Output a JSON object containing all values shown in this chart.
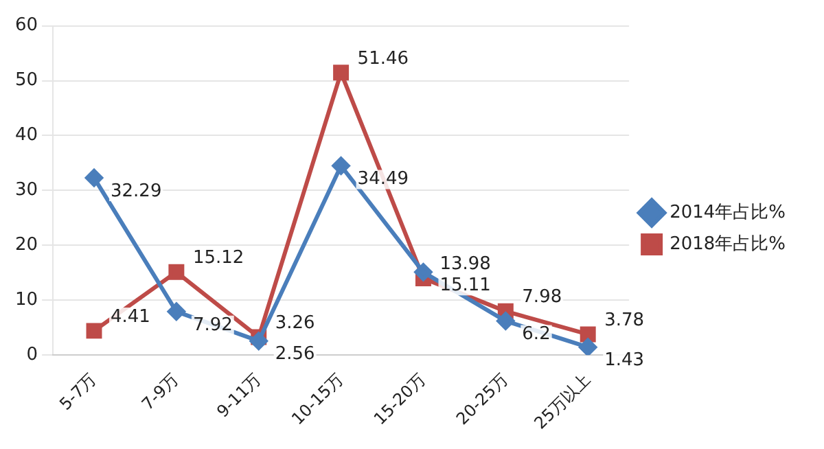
{
  "chart_data": {
    "type": "line",
    "categories": [
      "5-7万",
      "7-9万",
      "9-11万",
      "10-15万",
      "15-20万",
      "20-25万",
      "25万以上"
    ],
    "series": [
      {
        "name": "2014年占比%",
        "color": "#4a7ebb",
        "marker": "diamond",
        "values": [
          32.29,
          7.92,
          2.56,
          34.49,
          15.11,
          6.2,
          1.43
        ]
      },
      {
        "name": "2018年占比%",
        "color": "#be4b48",
        "marker": "square",
        "values": [
          4.41,
          15.12,
          3.26,
          51.46,
          13.98,
          7.98,
          3.78
        ]
      }
    ],
    "ylim": [
      0,
      60
    ],
    "yticks": [
      0,
      10,
      20,
      30,
      40,
      50,
      60
    ],
    "grid": "y",
    "legend": "right",
    "data_labels": true
  }
}
